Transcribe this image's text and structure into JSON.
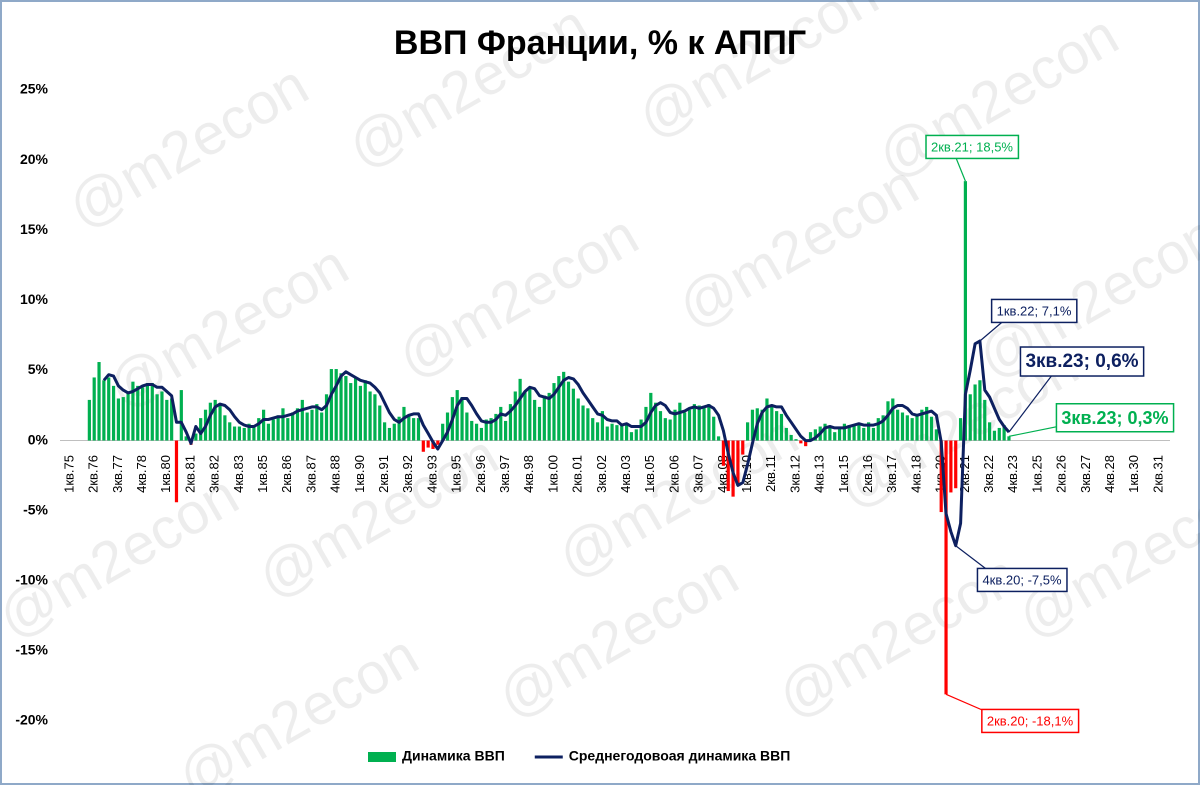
{
  "chart_data": {
    "type": "bar_line",
    "title": "ВВП Франции, % к АППГ",
    "watermark": "@m2econ",
    "categories": [
      "1кв.75",
      null,
      null,
      null,
      null,
      "2кв.76",
      null,
      null,
      null,
      null,
      "3кв.77",
      null,
      null,
      null,
      null,
      "4кв.78",
      null,
      null,
      null,
      null,
      "1кв.80",
      null,
      null,
      null,
      null,
      "2кв.81",
      null,
      null,
      null,
      null,
      "3кв.82",
      null,
      null,
      null,
      null,
      "4кв.83",
      null,
      null,
      null,
      null,
      "1кв.85",
      null,
      null,
      null,
      null,
      "2кв.86",
      null,
      null,
      null,
      null,
      "3кв.87",
      null,
      null,
      null,
      null,
      "4кв.88",
      null,
      null,
      null,
      null,
      "1кв.90",
      null,
      null,
      null,
      null,
      "2кв.91",
      null,
      null,
      null,
      null,
      "3кв.92",
      null,
      null,
      null,
      null,
      "4кв.93",
      null,
      null,
      null,
      null,
      "1кв.95",
      null,
      null,
      null,
      null,
      "2кв.96",
      null,
      null,
      null,
      null,
      "3кв.97",
      null,
      null,
      null,
      null,
      "4кв.98",
      null,
      null,
      null,
      null,
      "1кв.00",
      null,
      null,
      null,
      null,
      "2кв.01",
      null,
      null,
      null,
      null,
      "3кв.02",
      null,
      null,
      null,
      null,
      "4кв.03",
      null,
      null,
      null,
      null,
      "1кв.05",
      null,
      null,
      null,
      null,
      "2кв.06",
      null,
      null,
      null,
      null,
      "3кв.07",
      null,
      null,
      null,
      null,
      "4кв.08",
      null,
      null,
      null,
      null,
      "1кв.10",
      null,
      null,
      null,
      null,
      "2кв.11",
      null,
      null,
      null,
      null,
      "3кв.12",
      null,
      null,
      null,
      null,
      "4кв.13",
      null,
      null,
      null,
      null,
      "1кв.15",
      null,
      null,
      null,
      null,
      "2кв.16",
      null,
      null,
      null,
      null,
      "3кв.17",
      null,
      null,
      null,
      null,
      "4кв.18",
      null,
      null,
      null,
      null,
      "1кв.20",
      null,
      null,
      null,
      null,
      "2кв.21",
      null,
      null,
      null,
      null,
      "3кв.22",
      null,
      null,
      null,
      null,
      "4кв.23",
      null,
      null,
      null,
      null,
      "1кв.25",
      null,
      null,
      null,
      null,
      "2кв.26",
      null,
      null,
      null,
      null,
      "3кв.27",
      null,
      null,
      null,
      null,
      "4кв.28",
      null,
      null,
      null,
      null,
      "1кв.30",
      null,
      null,
      null,
      null,
      "2кв.31"
    ],
    "series": [
      {
        "name": "Динамика ВВП",
        "type": "bar",
        "color": "#00b050",
        "negative_color": "#ff0000",
        "values": [
          null,
          null,
          null,
          null,
          2.9,
          4.5,
          5.6,
          4.3,
          4.5,
          3.9,
          3.0,
          3.1,
          3.5,
          4.2,
          3.9,
          3.8,
          4.1,
          4.1,
          3.3,
          3.5,
          2.9,
          3.0,
          -4.4,
          3.6,
          0.3,
          -0.3,
          0.5,
          1.6,
          2.2,
          2.7,
          2.9,
          2.6,
          1.8,
          1.3,
          1.0,
          1.0,
          0.9,
          1.2,
          1.0,
          1.6,
          2.2,
          1.2,
          1.5,
          1.8,
          2.3,
          1.6,
          2.0,
          2.3,
          2.9,
          2.0,
          2.2,
          2.6,
          2.0,
          3.3,
          5.1,
          5.1,
          4.8,
          4.6,
          4.1,
          4.5,
          3.9,
          4.3,
          3.5,
          3.3,
          2.5,
          1.3,
          0.9,
          1.2,
          1.7,
          2.4,
          1.8,
          1.6,
          1.6,
          -0.8,
          -0.5,
          -0.6,
          -0.3,
          1.2,
          2.0,
          3.1,
          3.6,
          3.1,
          2.0,
          1.4,
          1.2,
          0.9,
          1.5,
          1.6,
          1.9,
          2.4,
          1.4,
          2.6,
          3.5,
          4.4,
          3.5,
          3.8,
          2.9,
          2.4,
          3.2,
          3.4,
          4.1,
          4.6,
          4.9,
          4.2,
          3.7,
          3.0,
          2.5,
          2.3,
          1.6,
          1.3,
          2.1,
          1.0,
          1.2,
          1.1,
          1.2,
          1.2,
          0.6,
          0.8,
          1.5,
          2.4,
          3.4,
          2.7,
          2.1,
          1.6,
          1.5,
          2.2,
          2.7,
          2.0,
          2.2,
          2.6,
          2.5,
          2.4,
          2.6,
          1.7,
          0.3,
          -1.8,
          -3.6,
          -4.0,
          -3.2,
          -1.0,
          1.3,
          2.2,
          2.3,
          2.2,
          3.0,
          2.4,
          2.1,
          1.9,
          0.9,
          0.4,
          0.1,
          -0.2,
          -0.4,
          0.6,
          0.8,
          1.0,
          1.2,
          0.9,
          0.6,
          0.9,
          1.2,
          1.1,
          1.1,
          1.2,
          0.9,
          1.3,
          0.9,
          1.6,
          1.8,
          2.8,
          3.0,
          2.2,
          2.0,
          1.8,
          1.6,
          1.9,
          2.2,
          2.4,
          1.7,
          0.8,
          -5.1,
          -18.1,
          -3.7,
          -3.4,
          1.6,
          18.5,
          3.3,
          4.0,
          4.3,
          2.9,
          1.3,
          0.7,
          0.9,
          1.1,
          0.3,
          null,
          null,
          null,
          null,
          null,
          null,
          null,
          null,
          null,
          null,
          null,
          null,
          null,
          null,
          null,
          null,
          null,
          null,
          null,
          null,
          null,
          null,
          null,
          null,
          null,
          null,
          null,
          null,
          null,
          null,
          null
        ],
        "value_labels": [
          null,
          null,
          null,
          null,
          null,
          null,
          null,
          null,
          null,
          null,
          null,
          null,
          null,
          null,
          null,
          null,
          null,
          null,
          null,
          null,
          null,
          null,
          null,
          null,
          null,
          null,
          null,
          null,
          null,
          null,
          null,
          null,
          null,
          null,
          null,
          null,
          null,
          null,
          null,
          null,
          null,
          null,
          null,
          null,
          null,
          null,
          null,
          null,
          null,
          null,
          null,
          null,
          null,
          null,
          null,
          null,
          null,
          null,
          null,
          null,
          null,
          null,
          null,
          null,
          null,
          null,
          null,
          null,
          null,
          null,
          null,
          null,
          null,
          null,
          null,
          null,
          null,
          null,
          null,
          null,
          null,
          null,
          null,
          null,
          null,
          null,
          null,
          null,
          null,
          null,
          null,
          null,
          null,
          null,
          null,
          null,
          null,
          null,
          null,
          null,
          null,
          null,
          null,
          null,
          null,
          null,
          null,
          null,
          null,
          null,
          null,
          null,
          null,
          null,
          null,
          null,
          null,
          null,
          null,
          null,
          null,
          null,
          null,
          null,
          null,
          null,
          null,
          null,
          null,
          null,
          null,
          null,
          null,
          null,
          null,
          null,
          null,
          null,
          null,
          null,
          null,
          null,
          null,
          null,
          null,
          null,
          null,
          null,
          null,
          null,
          null,
          null,
          null,
          null,
          null,
          null,
          null,
          null,
          null,
          null,
          null,
          null,
          null,
          null,
          null,
          null,
          null,
          null,
          null,
          null,
          null,
          null,
          null,
          null,
          null,
          null,
          null,
          null,
          null,
          null,
          null,
          "2кв.20; -18,1%",
          null,
          null,
          null,
          "2кв.21; 18,5%",
          null,
          null,
          null,
          null,
          null,
          null,
          null,
          null,
          "3кв.23; 0,3%",
          null,
          null,
          null,
          null,
          null,
          null,
          null,
          null,
          null,
          null,
          null,
          null,
          null,
          null,
          null,
          null,
          null,
          null,
          null,
          null,
          null,
          null,
          null,
          null,
          null,
          null,
          null,
          null,
          null,
          null,
          null
        ]
      },
      {
        "name": "Среднегодовоая динамика ВВП",
        "type": "line",
        "color": "#0d2060",
        "values": [
          null,
          null,
          null,
          null,
          null,
          null,
          null,
          4.3,
          4.7,
          4.6,
          3.9,
          3.6,
          3.4,
          3.5,
          3.7,
          3.9,
          4.0,
          4.0,
          3.8,
          3.8,
          3.5,
          3.2,
          1.3,
          1.3,
          0.6,
          -0.2,
          1.0,
          0.5,
          1.0,
          1.8,
          2.4,
          2.6,
          2.5,
          2.2,
          1.7,
          1.3,
          1.1,
          1.0,
          1.0,
          1.2,
          1.5,
          1.5,
          1.6,
          1.7,
          1.7,
          1.8,
          1.9,
          2.1,
          2.2,
          2.3,
          2.4,
          2.4,
          2.2,
          2.5,
          3.3,
          3.9,
          4.6,
          4.9,
          4.7,
          4.5,
          4.3,
          4.2,
          4.1,
          3.8,
          3.4,
          2.7,
          2.0,
          1.5,
          1.3,
          1.6,
          1.8,
          1.9,
          1.9,
          1.1,
          0.5,
          -0.1,
          -0.6,
          0.0,
          0.6,
          1.5,
          2.5,
          3.0,
          3.0,
          2.5,
          1.9,
          1.4,
          1.3,
          1.3,
          1.5,
          1.9,
          1.8,
          2.1,
          2.5,
          3.0,
          3.5,
          3.8,
          3.7,
          3.2,
          3.1,
          3.0,
          3.3,
          3.8,
          4.3,
          4.5,
          4.4,
          4.0,
          3.4,
          2.9,
          2.4,
          1.9,
          1.8,
          1.5,
          1.4,
          1.4,
          1.1,
          1.2,
          1.0,
          1.0,
          1.0,
          1.3,
          2.0,
          2.5,
          2.7,
          2.5,
          2.0,
          1.9,
          2.0,
          2.1,
          2.3,
          2.4,
          2.3,
          2.4,
          2.5,
          2.3,
          1.8,
          0.7,
          -0.9,
          -2.3,
          -3.2,
          -3.0,
          -1.7,
          -0.2,
          1.2,
          2.0,
          2.4,
          2.5,
          2.4,
          2.4,
          1.8,
          1.3,
          0.8,
          0.3,
          0.0,
          0.0,
          0.2,
          0.5,
          0.9,
          1.0,
          0.9,
          0.9,
          0.9,
          1.0,
          1.1,
          1.2,
          1.1,
          1.1,
          1.1,
          1.2,
          1.4,
          1.8,
          2.3,
          2.5,
          2.5,
          2.3,
          1.9,
          1.8,
          1.9,
          2.0,
          2.1,
          1.8,
          -0.1,
          -5.2,
          -6.5,
          -7.5,
          -5.9,
          3.3,
          5.0,
          6.9,
          7.1,
          3.6,
          3.1,
          2.3,
          1.5,
          1.0,
          0.6,
          null,
          null,
          null,
          null,
          null,
          null,
          null,
          null,
          null,
          null,
          null,
          null,
          null,
          null,
          null,
          null,
          null,
          null,
          null,
          null,
          null,
          null,
          null,
          null,
          null,
          null,
          null,
          null,
          null,
          null,
          null
        ],
        "value_labels": [
          null,
          null,
          null,
          null,
          null,
          null,
          null,
          null,
          null,
          null,
          null,
          null,
          null,
          null,
          null,
          null,
          null,
          null,
          null,
          null,
          null,
          null,
          null,
          null,
          null,
          null,
          null,
          null,
          null,
          null,
          null,
          null,
          null,
          null,
          null,
          null,
          null,
          null,
          null,
          null,
          null,
          null,
          null,
          null,
          null,
          null,
          null,
          null,
          null,
          null,
          null,
          null,
          null,
          null,
          null,
          null,
          null,
          null,
          null,
          null,
          null,
          null,
          null,
          null,
          null,
          null,
          null,
          null,
          null,
          null,
          null,
          null,
          null,
          null,
          null,
          null,
          null,
          null,
          null,
          null,
          null,
          null,
          null,
          null,
          null,
          null,
          null,
          null,
          null,
          null,
          null,
          null,
          null,
          null,
          null,
          null,
          null,
          null,
          null,
          null,
          null,
          null,
          null,
          null,
          null,
          null,
          null,
          null,
          null,
          null,
          null,
          null,
          null,
          null,
          null,
          null,
          null,
          null,
          null,
          null,
          null,
          null,
          null,
          null,
          null,
          null,
          null,
          null,
          null,
          null,
          null,
          null,
          null,
          null,
          null,
          null,
          null,
          null,
          null,
          null,
          null,
          null,
          null,
          null,
          null,
          null,
          null,
          null,
          null,
          null,
          null,
          null,
          null,
          null,
          null,
          null,
          null,
          null,
          null,
          null,
          null,
          null,
          null,
          null,
          null,
          null,
          null,
          null,
          null,
          null,
          null,
          null,
          null,
          null,
          null,
          null,
          null,
          null,
          null,
          null,
          null,
          null,
          null,
          "4кв.20; -7,5%",
          null,
          null,
          null,
          null,
          "1кв.22; 7,1%",
          null,
          null,
          null,
          null,
          null,
          "3кв.23; 0,6%",
          null,
          null,
          null,
          null,
          null,
          null,
          null,
          null,
          null,
          null,
          null,
          null,
          null,
          null,
          null,
          null,
          null,
          null,
          null,
          null,
          null,
          null,
          null,
          null,
          null,
          null,
          null,
          null,
          null,
          null
        ]
      }
    ],
    "ylim": [
      -20,
      25
    ],
    "yticks": [
      {
        "value": 25,
        "label": "25%"
      },
      {
        "value": 20,
        "label": "20%"
      },
      {
        "value": 15,
        "label": "15%"
      },
      {
        "value": 10,
        "label": "10%"
      },
      {
        "value": 5,
        "label": "5%"
      },
      {
        "value": 0,
        "label": "0%"
      },
      {
        "value": -5,
        "label": "-5%"
      },
      {
        "value": -10,
        "label": "-10%"
      },
      {
        "value": -15,
        "label": "-15%"
      },
      {
        "value": -20,
        "label": "-20%"
      }
    ],
    "grid": false,
    "legend": "bottom"
  }
}
